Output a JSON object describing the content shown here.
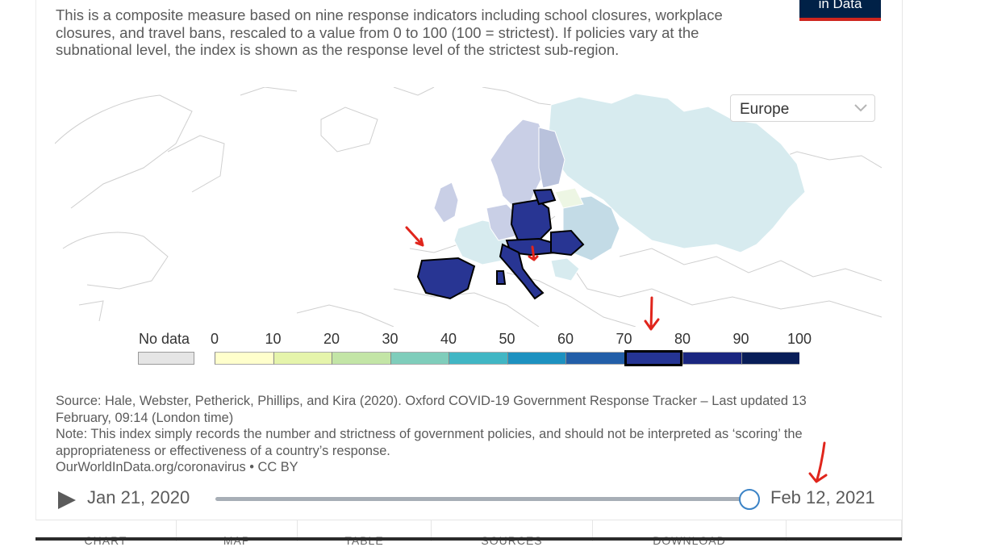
{
  "logo": {
    "text": "in Data"
  },
  "subtitle": "This is a composite measure based on nine response indicators including school closures, workplace closures, and travel bans, rescaled to a value from 0 to 100 (100 = strictest). If policies vary at the subnational level, the index is shown as the response level of the strictest sub-region.",
  "region_select": {
    "value": "Europe"
  },
  "legend": {
    "no_data_label": "No data",
    "ticks": [
      "0",
      "10",
      "20",
      "30",
      "40",
      "50",
      "60",
      "70",
      "80",
      "90",
      "100"
    ],
    "bin_colors": [
      "#ffffcc",
      "#e5f4ab",
      "#c3e5a6",
      "#7fcdbb",
      "#41b6c4",
      "#1d91c0",
      "#225ea8",
      "#253494",
      "#1a2680",
      "#081d58"
    ],
    "selected_bin": 7
  },
  "colors": {
    "highlight": "#283593",
    "light_blue": "#d7ebef",
    "lavender": "#c9cfe6",
    "grey_blue": "#b9c2dc",
    "pale_green": "#edf6e4",
    "annotation": "#e0251c"
  },
  "footer": {
    "source": "Source: Hale, Webster, Petherick, Phillips, and Kira (2020). Oxford COVID-19 Government Response Tracker – Last updated 13 February, 09:14 (London time)",
    "note": "Note: This index simply records the number and strictness of government policies, and should not be interpreted as ‘scoring’ the appropriateness or effectiveness of a country’s response.",
    "credit": "OurWorldInData.org/coronavirus • CC BY"
  },
  "timeline": {
    "start_date": "Jan 21, 2020",
    "end_date": "Feb 12, 2021",
    "position": 1.0
  },
  "tabs": [
    {
      "label": "CHART"
    },
    {
      "label": "MAP"
    },
    {
      "label": "TABLE"
    },
    {
      "label": "SOURCES"
    },
    {
      "label": "DOWNLOAD"
    },
    {
      "label": ""
    }
  ]
}
